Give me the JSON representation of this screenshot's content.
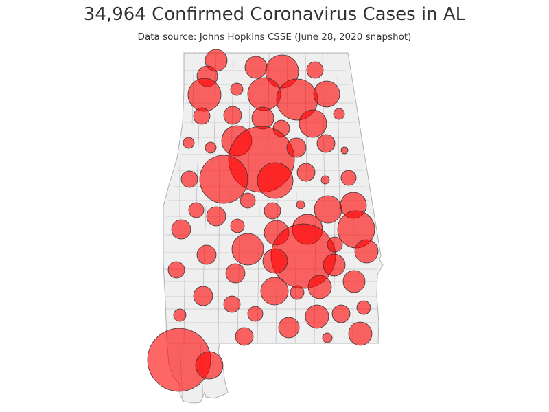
{
  "title": "34,964 Confirmed Coronavirus Cases in AL",
  "subtitle": "Data source: Johns Hopkins CSSE (June 28, 2020 snapshot)",
  "colors": {
    "state_fill": "#efefef",
    "state_border": "#b0b0b0",
    "bubble_fill": "#ff0000",
    "bubble_stroke": "#333333"
  }
}
